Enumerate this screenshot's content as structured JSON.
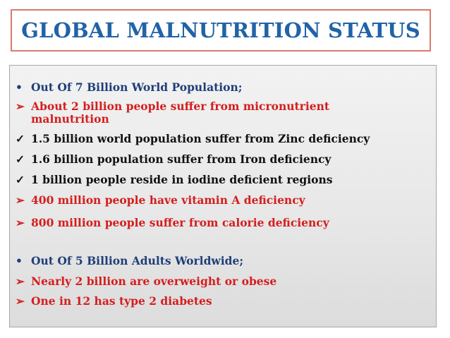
{
  "title": "GLOBAL MALNUTRITION STATUS",
  "colors": {
    "title": "#2163a7",
    "navy": "#1f3e78",
    "red": "#d51d1d",
    "black": "#111111",
    "title_border": "#d77a6c"
  },
  "icons": {
    "dot": "bullet-dot-icon",
    "arrow": "arrow-bullet-icon",
    "check": "check-bullet-icon"
  },
  "lines": [
    {
      "marker": "•",
      "text": "Out Of 7 Billion World Population;"
    },
    {
      "marker": "➢",
      "text": "About 2 billion people suffer from micronutrient"
    },
    {
      "marker": "",
      "text": "malnutrition"
    },
    {
      "marker": "✓",
      "text": "1.5 billion world population suffer from Zinc deficiency"
    },
    {
      "marker": "✓",
      "text": "1.6 billion population suffer from Iron deficiency"
    },
    {
      "marker": "✓",
      "text": "1 billion people reside in iodine deficient regions"
    },
    {
      "marker": "➢",
      "text": "400 million people have vitamin A deficiency"
    },
    {
      "marker": "➢",
      "text": "800 million people suffer from calorie deficiency"
    },
    {
      "marker": "•",
      "text": "Out Of 5 Billion Adults Worldwide;"
    },
    {
      "marker": "➢",
      "text": "Nearly 2 billion are overweight or obese"
    },
    {
      "marker": "➢",
      "text": "One in 12 has type 2 diabetes"
    }
  ]
}
